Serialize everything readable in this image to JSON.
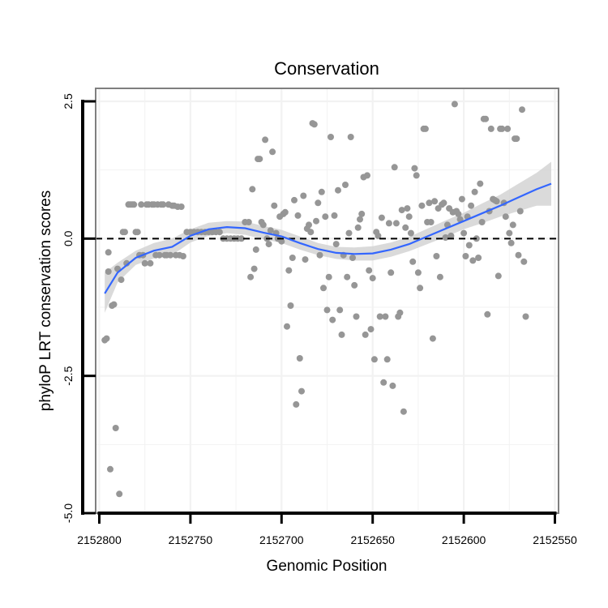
{
  "chart_data": {
    "type": "scatter",
    "title": "Conservation",
    "xlabel": "Genomic Position",
    "ylabel": "phyloP LRT conservation scores",
    "x_reversed": true,
    "xlim": [
      2152802,
      2152548
    ],
    "ylim": [
      -5.0,
      2.5
    ],
    "x_ticks": [
      2152800,
      2152750,
      2152700,
      2152650,
      2152600,
      2152550
    ],
    "x_tick_labels": [
      "2152800",
      "2152750",
      "2152700",
      "2152650",
      "2152600",
      "2152550"
    ],
    "y_ticks": [
      2.5,
      0.0,
      -2.5,
      -5.0
    ],
    "y_tick_labels": [
      "2.5",
      "0.0",
      "-2.5",
      "-5.0"
    ],
    "grid": true,
    "reference_line": {
      "y": 0.0,
      "style": "dashed"
    },
    "colors": {
      "points": "#969696",
      "smooth": "#3366ff",
      "band": "#d4d4d4",
      "panel_border": "#7f7f7f",
      "grid": "#f2f2f2"
    },
    "series": [
      {
        "name": "scores",
        "points": [
          [
            2152797,
            -1.85
          ],
          [
            2152796,
            -1.82
          ],
          [
            2152795,
            -0.6
          ],
          [
            2152795,
            -0.25
          ],
          [
            2152794,
            -4.2
          ],
          [
            2152793,
            -1.22
          ],
          [
            2152792,
            -1.2
          ],
          [
            2152791,
            -3.45
          ],
          [
            2152790,
            -0.55
          ],
          [
            2152789,
            -4.65
          ],
          [
            2152788,
            -0.75
          ],
          [
            2152787,
            0.12
          ],
          [
            2152786,
            0.12
          ],
          [
            2152785,
            -0.45
          ],
          [
            2152784,
            0.62
          ],
          [
            2152783,
            0.62
          ],
          [
            2152782,
            0.62
          ],
          [
            2152781,
            0.62
          ],
          [
            2152780,
            0.12
          ],
          [
            2152779,
            0.12
          ],
          [
            2152778,
            -0.3
          ],
          [
            2152777,
            0.62
          ],
          [
            2152776,
            -0.3
          ],
          [
            2152775,
            -0.45
          ],
          [
            2152774,
            0.62
          ],
          [
            2152773,
            0.62
          ],
          [
            2152772,
            -0.45
          ],
          [
            2152771,
            0.62
          ],
          [
            2152770,
            0.62
          ],
          [
            2152769,
            -0.3
          ],
          [
            2152768,
            0.62
          ],
          [
            2152767,
            -0.3
          ],
          [
            2152766,
            0.62
          ],
          [
            2152765,
            0.62
          ],
          [
            2152764,
            -0.3
          ],
          [
            2152763,
            -0.3
          ],
          [
            2152762,
            0.62
          ],
          [
            2152761,
            -0.3
          ],
          [
            2152760,
            0.6
          ],
          [
            2152759,
            0.6
          ],
          [
            2152758,
            -0.3
          ],
          [
            2152757,
            0.58
          ],
          [
            2152756,
            -0.3
          ],
          [
            2152755,
            0.58
          ],
          [
            2152754,
            -0.32
          ],
          [
            2152752,
            0.12
          ],
          [
            2152750,
            0.12
          ],
          [
            2152748,
            0.12
          ],
          [
            2152746,
            0.12
          ],
          [
            2152744,
            0.12
          ],
          [
            2152742,
            0.12
          ],
          [
            2152740,
            0.12
          ],
          [
            2152738,
            0.12
          ],
          [
            2152736,
            0.12
          ],
          [
            2152734,
            0.12
          ],
          [
            2152732,
            0.0
          ],
          [
            2152730,
            0.0
          ],
          [
            2152728,
            0.0
          ],
          [
            2152726,
            0.0
          ],
          [
            2152724,
            0.0
          ],
          [
            2152722,
            0.0
          ],
          [
            2152720,
            0.3
          ],
          [
            2152718,
            0.3
          ],
          [
            2152717,
            -0.7
          ],
          [
            2152716,
            0.9
          ],
          [
            2152715,
            -0.55
          ],
          [
            2152714,
            -0.2
          ],
          [
            2152713,
            1.45
          ],
          [
            2152712,
            1.45
          ],
          [
            2152711,
            0.3
          ],
          [
            2152710,
            0.25
          ],
          [
            2152709,
            1.8
          ],
          [
            2152708,
            0.0
          ],
          [
            2152707,
            -0.1
          ],
          [
            2152706,
            0.15
          ],
          [
            2152705,
            1.58
          ],
          [
            2152704,
            0.6
          ],
          [
            2152703,
            0.1
          ],
          [
            2152702,
            0.0
          ],
          [
            2152701,
            0.4
          ],
          [
            2152700,
            -0.05
          ],
          [
            2152699,
            0.45
          ],
          [
            2152698,
            0.48
          ],
          [
            2152697,
            -1.6
          ],
          [
            2152696,
            -0.58
          ],
          [
            2152695,
            -1.22
          ],
          [
            2152694,
            -0.35
          ],
          [
            2152693,
            0.7
          ],
          [
            2152692,
            -3.02
          ],
          [
            2152691,
            0.42
          ],
          [
            2152690,
            -2.18
          ],
          [
            2152689,
            -2.78
          ],
          [
            2152688,
            0.78
          ],
          [
            2152687,
            -0.38
          ],
          [
            2152686,
            0.18
          ],
          [
            2152685,
            0.25
          ],
          [
            2152684,
            0.12
          ],
          [
            2152683,
            2.1
          ],
          [
            2152682,
            2.08
          ],
          [
            2152681,
            0.32
          ],
          [
            2152680,
            0.65
          ],
          [
            2152679,
            -0.3
          ],
          [
            2152678,
            0.85
          ],
          [
            2152677,
            -0.9
          ],
          [
            2152676,
            0.4
          ],
          [
            2152675,
            -1.3
          ],
          [
            2152674,
            -0.7
          ],
          [
            2152673,
            1.85
          ],
          [
            2152672,
            -1.48
          ],
          [
            2152671,
            0.42
          ],
          [
            2152670,
            -0.1
          ],
          [
            2152669,
            0.88
          ],
          [
            2152668,
            -1.3
          ],
          [
            2152667,
            -1.75
          ],
          [
            2152666,
            -0.3
          ],
          [
            2152665,
            0.98
          ],
          [
            2152664,
            -0.7
          ],
          [
            2152663,
            0.1
          ],
          [
            2152662,
            1.85
          ],
          [
            2152661,
            -0.35
          ],
          [
            2152660,
            -0.85
          ],
          [
            2152659,
            -1.42
          ],
          [
            2152658,
            0.2
          ],
          [
            2152657,
            0.35
          ],
          [
            2152656,
            0.45
          ],
          [
            2152655,
            1.12
          ],
          [
            2152654,
            -1.75
          ],
          [
            2152653,
            1.15
          ],
          [
            2152652,
            -0.58
          ],
          [
            2152651,
            -1.65
          ],
          [
            2152650,
            -0.72
          ],
          [
            2152649,
            -2.2
          ],
          [
            2152648,
            0.12
          ],
          [
            2152647,
            0.05
          ],
          [
            2152646,
            -1.42
          ],
          [
            2152645,
            0.38
          ],
          [
            2152644,
            -2.62
          ],
          [
            2152643,
            -1.42
          ],
          [
            2152642,
            -2.2
          ],
          [
            2152641,
            0.28
          ],
          [
            2152640,
            -0.62
          ],
          [
            2152639,
            -2.68
          ],
          [
            2152638,
            1.3
          ],
          [
            2152637,
            0.28
          ],
          [
            2152636,
            -1.42
          ],
          [
            2152635,
            -1.35
          ],
          [
            2152634,
            0.52
          ],
          [
            2152633,
            -3.15
          ],
          [
            2152632,
            0.2
          ],
          [
            2152631,
            0.55
          ],
          [
            2152630,
            0.4
          ],
          [
            2152629,
            0.1
          ],
          [
            2152628,
            -0.42
          ],
          [
            2152627,
            1.28
          ],
          [
            2152626,
            1.15
          ],
          [
            2152625,
            -0.62
          ],
          [
            2152624,
            -0.9
          ],
          [
            2152623,
            0.6
          ],
          [
            2152622,
            2.0
          ],
          [
            2152621,
            2.0
          ],
          [
            2152620,
            0.3
          ],
          [
            2152619,
            0.65
          ],
          [
            2152618,
            0.3
          ],
          [
            2152617,
            -1.82
          ],
          [
            2152616,
            0.68
          ],
          [
            2152615,
            -0.32
          ],
          [
            2152614,
            0.55
          ],
          [
            2152613,
            -0.7
          ],
          [
            2152612,
            0.62
          ],
          [
            2152611,
            0.65
          ],
          [
            2152610,
            0.02
          ],
          [
            2152609,
            0.25
          ],
          [
            2152608,
            0.55
          ],
          [
            2152607,
            0.05
          ],
          [
            2152606,
            0.48
          ],
          [
            2152605,
            2.45
          ],
          [
            2152604,
            0.5
          ],
          [
            2152603,
            0.45
          ],
          [
            2152602,
            0.35
          ],
          [
            2152601,
            0.72
          ],
          [
            2152600,
            0.1
          ],
          [
            2152599,
            -0.32
          ],
          [
            2152598,
            0.4
          ],
          [
            2152597,
            -0.12
          ],
          [
            2152596,
            0.6
          ],
          [
            2152595,
            -0.4
          ],
          [
            2152594,
            0.85
          ],
          [
            2152593,
            0.0
          ],
          [
            2152592,
            -0.35
          ],
          [
            2152591,
            1.0
          ],
          [
            2152590,
            0.3
          ],
          [
            2152589,
            2.18
          ],
          [
            2152588,
            2.18
          ],
          [
            2152587,
            -1.38
          ],
          [
            2152586,
            0.5
          ],
          [
            2152585,
            2.0
          ],
          [
            2152584,
            0.72
          ],
          [
            2152583,
            0.7
          ],
          [
            2152582,
            0.68
          ],
          [
            2152581,
            -0.68
          ],
          [
            2152580,
            2.0
          ],
          [
            2152579,
            2.0
          ],
          [
            2152578,
            0.65
          ],
          [
            2152577,
            0.4
          ],
          [
            2152576,
            2.0
          ],
          [
            2152575,
            0.1
          ],
          [
            2152574,
            -0.08
          ],
          [
            2152573,
            0.25
          ],
          [
            2152572,
            1.82
          ],
          [
            2152571,
            1.82
          ],
          [
            2152570,
            -0.3
          ],
          [
            2152569,
            0.5
          ],
          [
            2152568,
            2.35
          ],
          [
            2152567,
            -0.42
          ],
          [
            2152566,
            -1.42
          ]
        ]
      }
    ],
    "smooth": {
      "x": [
        2152797,
        2152790,
        2152780,
        2152770,
        2152760,
        2152750,
        2152740,
        2152730,
        2152720,
        2152710,
        2152700,
        2152690,
        2152680,
        2152670,
        2152660,
        2152650,
        2152640,
        2152630,
        2152620,
        2152610,
        2152600,
        2152590,
        2152580,
        2152570,
        2152560,
        2152552
      ],
      "y": [
        -1.0,
        -0.62,
        -0.35,
        -0.22,
        -0.15,
        0.05,
        0.17,
        0.21,
        0.19,
        0.11,
        0.04,
        -0.08,
        -0.19,
        -0.26,
        -0.28,
        -0.27,
        -0.2,
        -0.1,
        0.04,
        0.18,
        0.32,
        0.46,
        0.6,
        0.75,
        0.9,
        1.0
      ],
      "lower": [
        -1.35,
        -0.8,
        -0.48,
        -0.36,
        -0.3,
        -0.07,
        0.05,
        0.1,
        0.07,
        -0.01,
        -0.08,
        -0.2,
        -0.3,
        -0.37,
        -0.4,
        -0.4,
        -0.33,
        -0.23,
        -0.1,
        0.03,
        0.17,
        0.28,
        0.4,
        0.5,
        0.6,
        0.6
      ],
      "upper": [
        -0.62,
        -0.44,
        -0.22,
        -0.08,
        0.0,
        0.17,
        0.29,
        0.32,
        0.31,
        0.23,
        0.16,
        0.04,
        -0.08,
        -0.15,
        -0.16,
        -0.14,
        -0.07,
        0.03,
        0.18,
        0.33,
        0.47,
        0.64,
        0.8,
        1.0,
        1.2,
        1.4
      ]
    }
  }
}
